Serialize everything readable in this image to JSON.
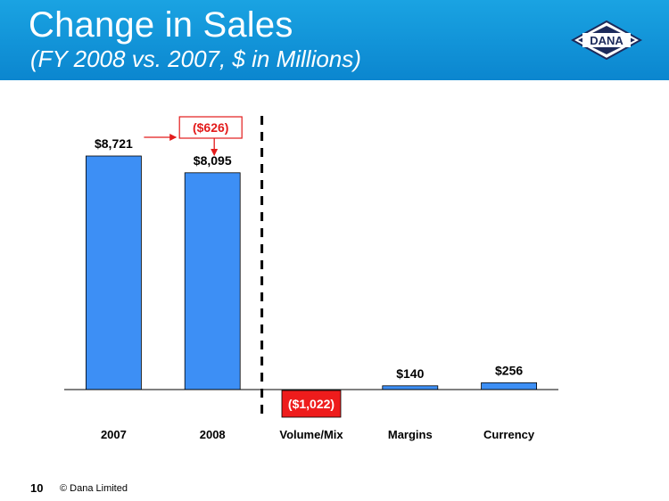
{
  "header": {
    "title": "Change in Sales",
    "subtitle": "(FY 2008 vs. 2007, $ in Millions)",
    "logo_text": "DANA"
  },
  "footer": {
    "page_number": "10",
    "copyright": "© Dana Limited"
  },
  "colors": {
    "header": "#1197d8",
    "bar": "#3d8ff5",
    "bar_stroke": "#000000",
    "negative_box": "#ee1c1c",
    "annotation": "#e31b1b",
    "logo_navy": "#1c2a5b"
  },
  "chart_data": {
    "type": "bar",
    "categories": [
      "2007",
      "2008",
      "Volume/Mix",
      "Margins",
      "Currency"
    ],
    "values": [
      8721,
      8095,
      -1022,
      140,
      256
    ],
    "value_labels": [
      "$8,721",
      "$8,095",
      "($1,022)",
      "$140",
      "$256"
    ],
    "bar_style": [
      "bar",
      "bar",
      "negative-box",
      "bar",
      "bar"
    ],
    "annotation": {
      "label": "($626)",
      "from": "2007",
      "to": "2008"
    },
    "divider_after": "2008",
    "ylim": [
      0,
      9000
    ],
    "grid": false,
    "legend": "none",
    "title": "",
    "xlabel": "",
    "ylabel": ""
  }
}
